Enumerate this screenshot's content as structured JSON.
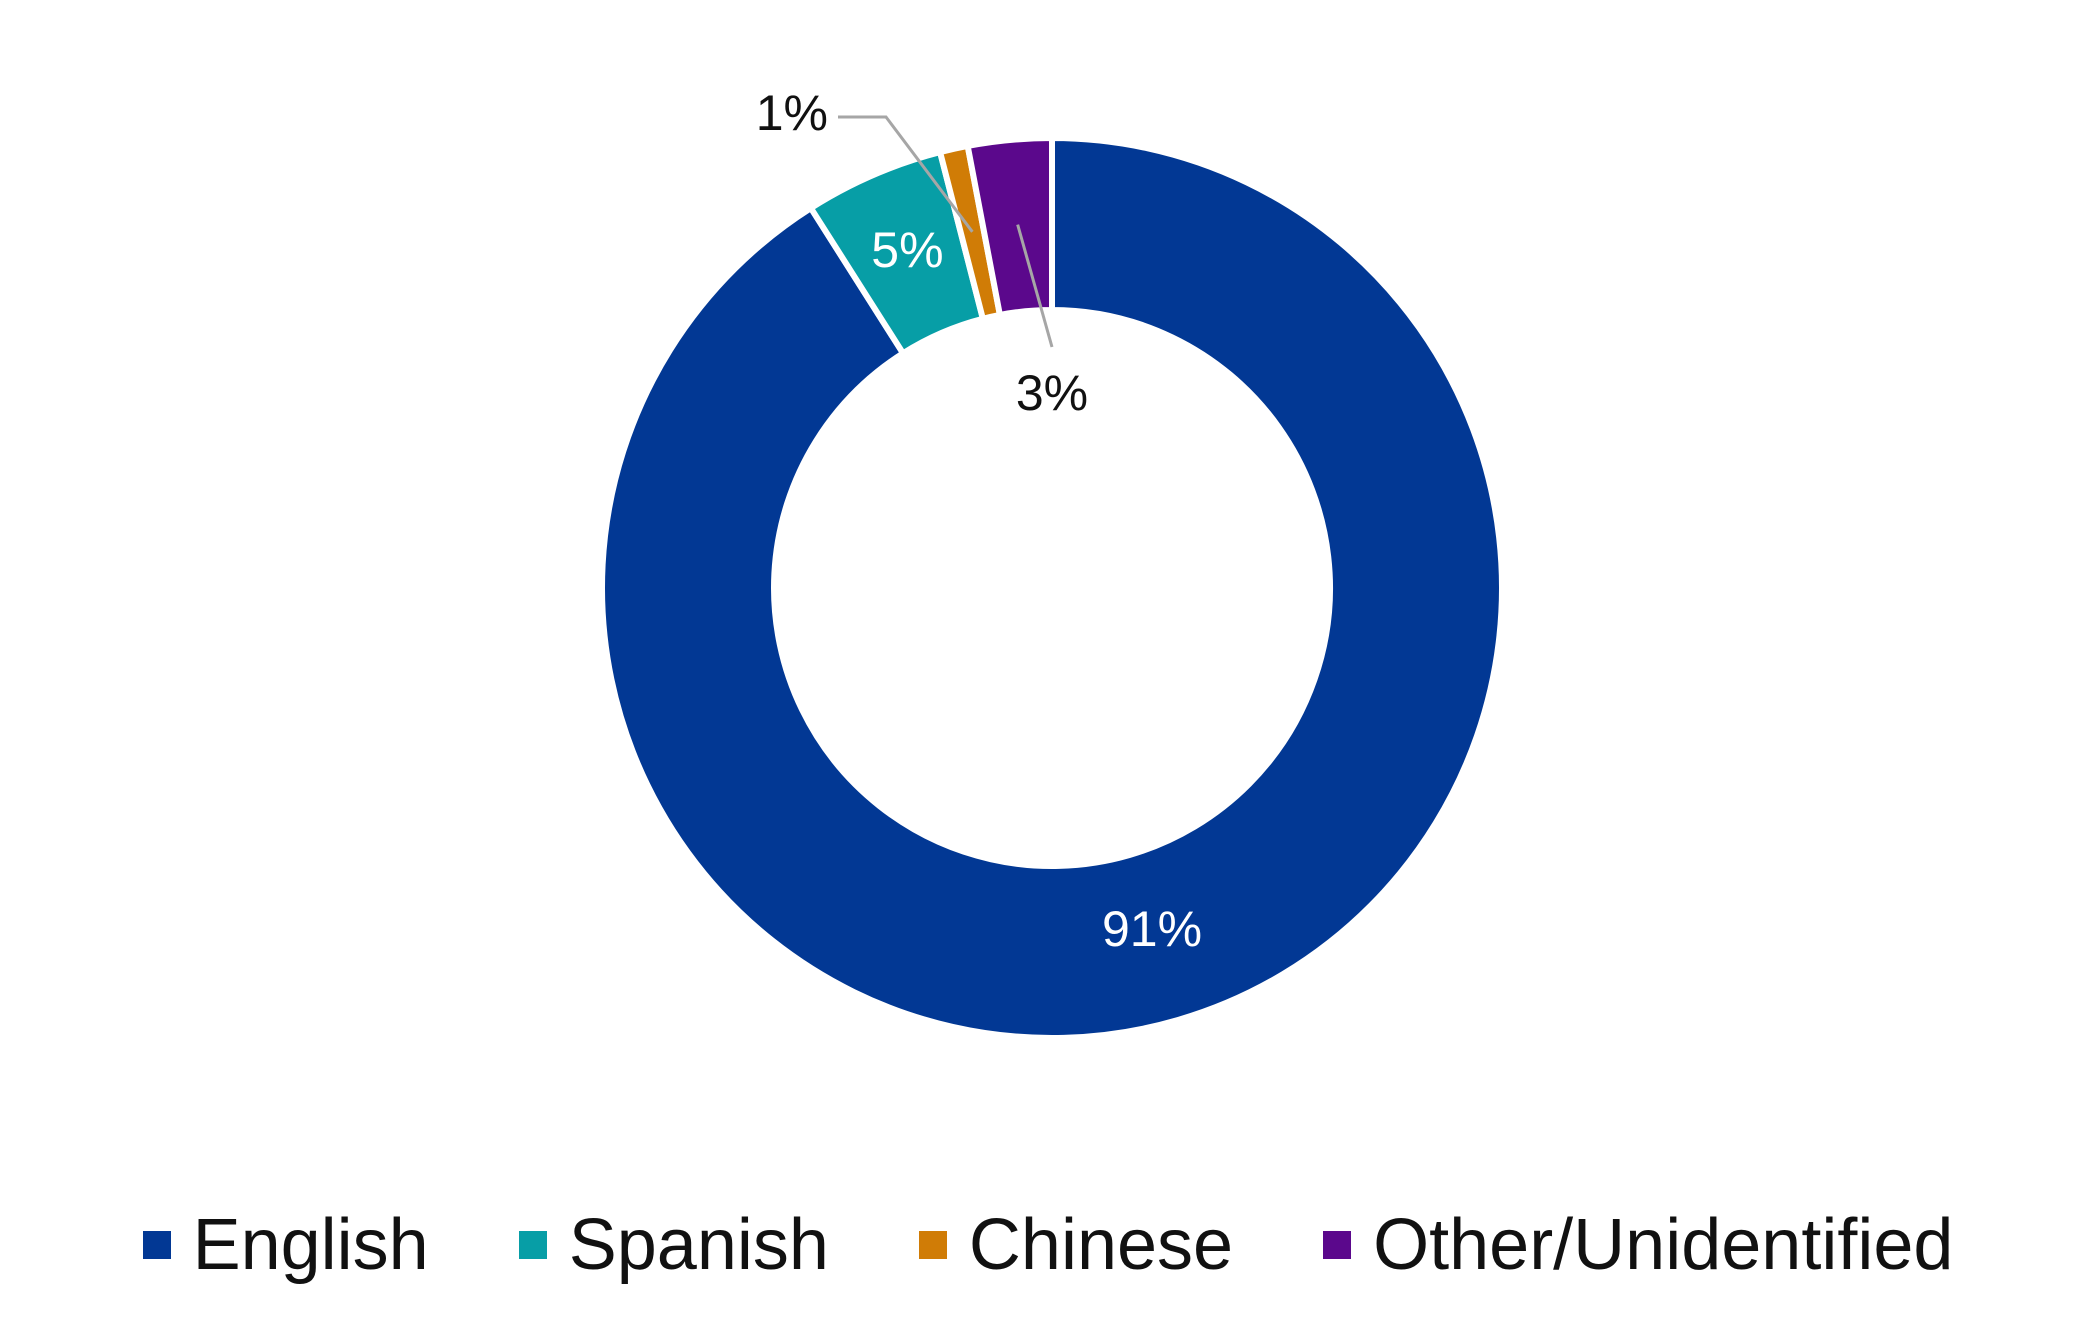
{
  "chart_data": {
    "type": "pie",
    "categories": [
      "English",
      "Spanish",
      "Chinese",
      "Other/Unidentified"
    ],
    "values": [
      91,
      5,
      1,
      3
    ],
    "data_labels": [
      "91%",
      "5%",
      "1%",
      "3%"
    ],
    "colors": [
      "#023894",
      "#079ea6",
      "#d07c06",
      "#5b088c"
    ],
    "label_colors": [
      "#ffffff",
      "#ffffff",
      "#111111",
      "#111111"
    ],
    "leader_color": "#a6a6a6",
    "legend_placement": "bottom",
    "title": ""
  }
}
